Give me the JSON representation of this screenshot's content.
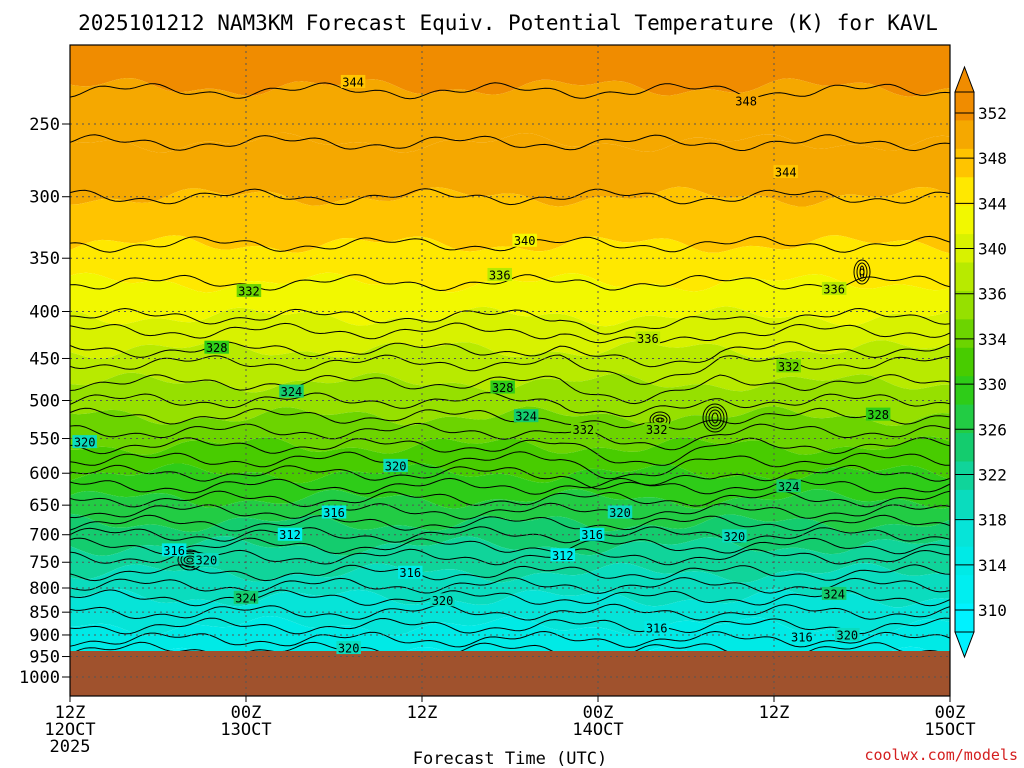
{
  "title": "2025101212 NAM3KM Forecast Equiv. Potential Temperature (K) for KAVL",
  "xlabel": "Forecast Time (UTC)",
  "credit": "coolwx.com/models",
  "colors": {
    "ground": "#a0522d",
    "contour_line": "#000000",
    "grid_line": "#555555"
  },
  "chart_data": {
    "type": "heatmap",
    "variable": "Equiv. Potential Temperature",
    "units": "K",
    "location": "KAVL",
    "model": "NAM3KM",
    "run": "2025101212",
    "y_axis": {
      "label": "",
      "ticks": [
        250,
        300,
        350,
        400,
        450,
        500,
        550,
        600,
        650,
        700,
        750,
        800,
        850,
        900,
        950,
        1000
      ],
      "range": [
        200,
        1050
      ],
      "scale": "log",
      "direction": "pressure decreasing upward"
    },
    "x_axis": {
      "label": "Forecast Time (UTC)",
      "range_hours": [
        0,
        60
      ],
      "ticks": [
        {
          "hour": 0,
          "line1": "12Z",
          "line2": "12OCT",
          "line3": "2025"
        },
        {
          "hour": 12,
          "line1": "00Z",
          "line2": "13OCT",
          "line3": ""
        },
        {
          "hour": 24,
          "line1": "12Z",
          "line2": "",
          "line3": ""
        },
        {
          "hour": 36,
          "line1": "00Z",
          "line2": "14OCT",
          "line3": ""
        },
        {
          "hour": 48,
          "line1": "12Z",
          "line2": "",
          "line3": ""
        },
        {
          "hour": 60,
          "line1": "00Z",
          "line2": "15OCT",
          "line3": ""
        }
      ]
    },
    "grid": true,
    "colorbar": {
      "labels": [
        352,
        348,
        344,
        340,
        336,
        334,
        330,
        326,
        322,
        318,
        314,
        310
      ],
      "bins": [
        {
          "color": "#f08c00",
          "value": 352
        },
        {
          "color": "#f5a800",
          "value": 348
        },
        {
          "color": "#ffc400",
          "value": 344
        },
        {
          "color": "#ffe800",
          "value": 342
        },
        {
          "color": "#f2f800",
          "value": 340
        },
        {
          "color": "#d8f200",
          "value": 338
        },
        {
          "color": "#b8ea00",
          "value": 336
        },
        {
          "color": "#96e000",
          "value": 334
        },
        {
          "color": "#6cd400",
          "value": 332
        },
        {
          "color": "#48cc00",
          "value": 330
        },
        {
          "color": "#2ecc18",
          "value": 328
        },
        {
          "color": "#22cc44",
          "value": 326
        },
        {
          "color": "#14cc6e",
          "value": 324
        },
        {
          "color": "#10d49a",
          "value": 322
        },
        {
          "color": "#0adcbe",
          "value": 320
        },
        {
          "color": "#06e4d8",
          "value": 318
        },
        {
          "color": "#00eae6",
          "value": 316
        },
        {
          "color": "#00eef0",
          "value": 314
        },
        {
          "color": "#00f2ff",
          "value": 310
        }
      ]
    },
    "contour_labels": [
      {
        "value": 344,
        "hour": 19.3,
        "pres": 225
      },
      {
        "value": 348,
        "hour": 46.1,
        "pres": 236
      },
      {
        "value": 344,
        "hour": 48.8,
        "pres": 282
      },
      {
        "value": 340,
        "hour": 31.0,
        "pres": 335
      },
      {
        "value": 336,
        "hour": 29.3,
        "pres": 365
      },
      {
        "value": 336,
        "hour": 52.1,
        "pres": 378
      },
      {
        "value": 332,
        "hour": 12.2,
        "pres": 380
      },
      {
        "value": 336,
        "hour": 39.4,
        "pres": 428
      },
      {
        "value": 328,
        "hour": 10.0,
        "pres": 438
      },
      {
        "value": 332,
        "hour": 49.0,
        "pres": 459
      },
      {
        "value": 324,
        "hour": 15.1,
        "pres": 489
      },
      {
        "value": 328,
        "hour": 29.5,
        "pres": 484
      },
      {
        "value": 324,
        "hour": 31.1,
        "pres": 520
      },
      {
        "value": 328,
        "hour": 55.1,
        "pres": 518
      },
      {
        "value": 332,
        "hour": 35.0,
        "pres": 538
      },
      {
        "value": 332,
        "hour": 40.0,
        "pres": 538
      },
      {
        "value": 320,
        "hour": 1.0,
        "pres": 555
      },
      {
        "value": 320,
        "hour": 22.2,
        "pres": 589
      },
      {
        "value": 324,
        "hour": 49.0,
        "pres": 620
      },
      {
        "value": 316,
        "hour": 18.0,
        "pres": 662
      },
      {
        "value": 320,
        "hour": 37.5,
        "pres": 662
      },
      {
        "value": 312,
        "hour": 15.0,
        "pres": 700
      },
      {
        "value": 316,
        "hour": 35.6,
        "pres": 700
      },
      {
        "value": 320,
        "hour": 45.3,
        "pres": 703
      },
      {
        "value": 316,
        "hour": 7.1,
        "pres": 728
      },
      {
        "value": 320,
        "hour": 9.3,
        "pres": 746
      },
      {
        "value": 312,
        "hour": 33.6,
        "pres": 737
      },
      {
        "value": 316,
        "hour": 23.2,
        "pres": 770
      },
      {
        "value": 324,
        "hour": 12.0,
        "pres": 820
      },
      {
        "value": 320,
        "hour": 25.4,
        "pres": 825
      },
      {
        "value": 324,
        "hour": 52.1,
        "pres": 812
      },
      {
        "value": 316,
        "hour": 40.0,
        "pres": 884
      },
      {
        "value": 316,
        "hour": 49.9,
        "pres": 905
      },
      {
        "value": 320,
        "hour": 53.0,
        "pres": 900
      },
      {
        "value": 320,
        "hour": 19.0,
        "pres": 930
      }
    ],
    "surface_pressure_hpa": 950
  }
}
